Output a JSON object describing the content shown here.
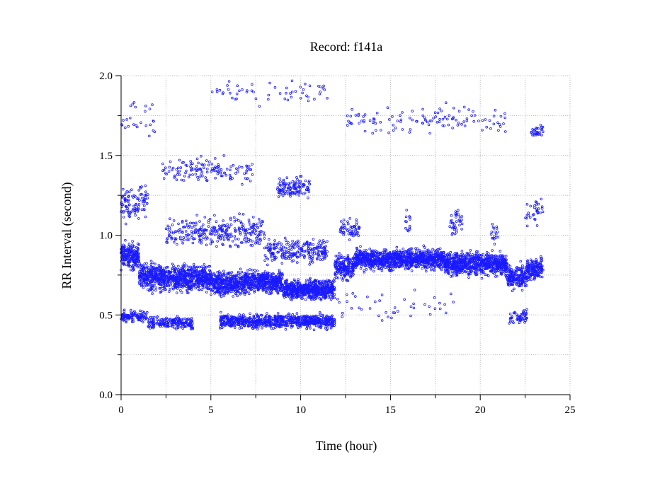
{
  "chart_data": {
    "type": "scatter",
    "title": "Record:  f141a",
    "xlabel": "Time (hour)",
    "ylabel": "RR Interval (second)",
    "xlim": [
      0,
      25
    ],
    "ylim": [
      0.0,
      2.0
    ],
    "xticks": [
      0,
      5,
      10,
      15,
      20,
      25
    ],
    "xtick_labels": [
      "0",
      "5",
      "10",
      "15",
      "20",
      "25"
    ],
    "yticks": [
      0.0,
      0.5,
      1.0,
      1.5,
      2.0
    ],
    "ytick_labels": [
      "0.0",
      "0.5",
      "1.0",
      "1.5",
      "2.0"
    ],
    "grid": true,
    "marker_color": "#1a1aff",
    "series": [
      {
        "bands": [
          {
            "x": [
              0.0,
              1.0
            ],
            "y": [
              0.76,
              0.98
            ],
            "density": 1.0
          },
          {
            "x": [
              1.0,
              2.3
            ],
            "y": [
              0.62,
              0.86
            ],
            "density": 1.0
          },
          {
            "x": [
              2.3,
              5.0
            ],
            "y": [
              0.62,
              0.84
            ],
            "density": 1.0
          },
          {
            "x": [
              5.0,
              7.0
            ],
            "y": [
              0.6,
              0.8
            ],
            "density": 1.0
          },
          {
            "x": [
              7.0,
              9.0
            ],
            "y": [
              0.62,
              0.8
            ],
            "density": 1.0
          },
          {
            "x": [
              9.0,
              11.9
            ],
            "y": [
              0.58,
              0.74
            ],
            "density": 1.0
          },
          {
            "x": [
              11.9,
              13.0
            ],
            "y": [
              0.7,
              0.9
            ],
            "density": 0.8
          },
          {
            "x": [
              13.0,
              18.0
            ],
            "y": [
              0.76,
              0.94
            ],
            "density": 1.0
          },
          {
            "x": [
              18.0,
              21.5
            ],
            "y": [
              0.72,
              0.92
            ],
            "density": 1.0
          },
          {
            "x": [
              21.5,
              22.6
            ],
            "y": [
              0.64,
              0.84
            ],
            "density": 0.8
          },
          {
            "x": [
              22.6,
              23.5
            ],
            "y": [
              0.7,
              0.88
            ],
            "density": 0.8
          },
          {
            "x": [
              0.0,
              1.5
            ],
            "y": [
              0.44,
              0.54
            ],
            "density": 0.35
          },
          {
            "x": [
              1.5,
              4.0
            ],
            "y": [
              0.4,
              0.5
            ],
            "density": 0.35
          },
          {
            "x": [
              5.5,
              11.9
            ],
            "y": [
              0.4,
              0.52
            ],
            "density": 0.55
          },
          {
            "x": [
              0.0,
              1.5
            ],
            "y": [
              1.05,
              1.35
            ],
            "density": 0.3
          },
          {
            "x": [
              2.5,
              8.0
            ],
            "y": [
              0.88,
              1.15
            ],
            "density": 0.25
          },
          {
            "x": [
              8.0,
              11.5
            ],
            "y": [
              0.8,
              1.0
            ],
            "density": 0.3
          },
          {
            "x": [
              8.7,
              10.5
            ],
            "y": [
              1.22,
              1.38
            ],
            "density": 0.3
          },
          {
            "x": [
              2.3,
              7.5
            ],
            "y": [
              1.3,
              1.52
            ],
            "density": 0.12
          },
          {
            "x": [
              12.2,
              13.3
            ],
            "y": [
              0.95,
              1.12
            ],
            "density": 0.25
          },
          {
            "x": [
              15.8,
              16.1
            ],
            "y": [
              0.95,
              1.2
            ],
            "density": 0.2
          },
          {
            "x": [
              18.3,
              19.0
            ],
            "y": [
              0.95,
              1.2
            ],
            "density": 0.25
          },
          {
            "x": [
              20.6,
              21.0
            ],
            "y": [
              0.92,
              1.1
            ],
            "density": 0.2
          },
          {
            "x": [
              21.6,
              22.6
            ],
            "y": [
              0.43,
              0.55
            ],
            "density": 0.25
          },
          {
            "x": [
              22.5,
              23.5
            ],
            "y": [
              1.0,
              1.3
            ],
            "density": 0.15
          },
          {
            "x": [
              22.8,
              23.5
            ],
            "y": [
              1.6,
              1.7
            ],
            "density": 0.2
          },
          {
            "x": [
              12.5,
              21.5
            ],
            "y": [
              1.6,
              1.85
            ],
            "density": 0.06
          },
          {
            "x": [
              0.0,
              2.0
            ],
            "y": [
              1.55,
              1.9
            ],
            "density": 0.06
          },
          {
            "x": [
              5.0,
              11.5
            ],
            "y": [
              1.8,
              2.0
            ],
            "density": 0.04
          },
          {
            "x": [
              12.0,
              18.5
            ],
            "y": [
              0.42,
              0.7
            ],
            "density": 0.03
          }
        ]
      }
    ]
  }
}
